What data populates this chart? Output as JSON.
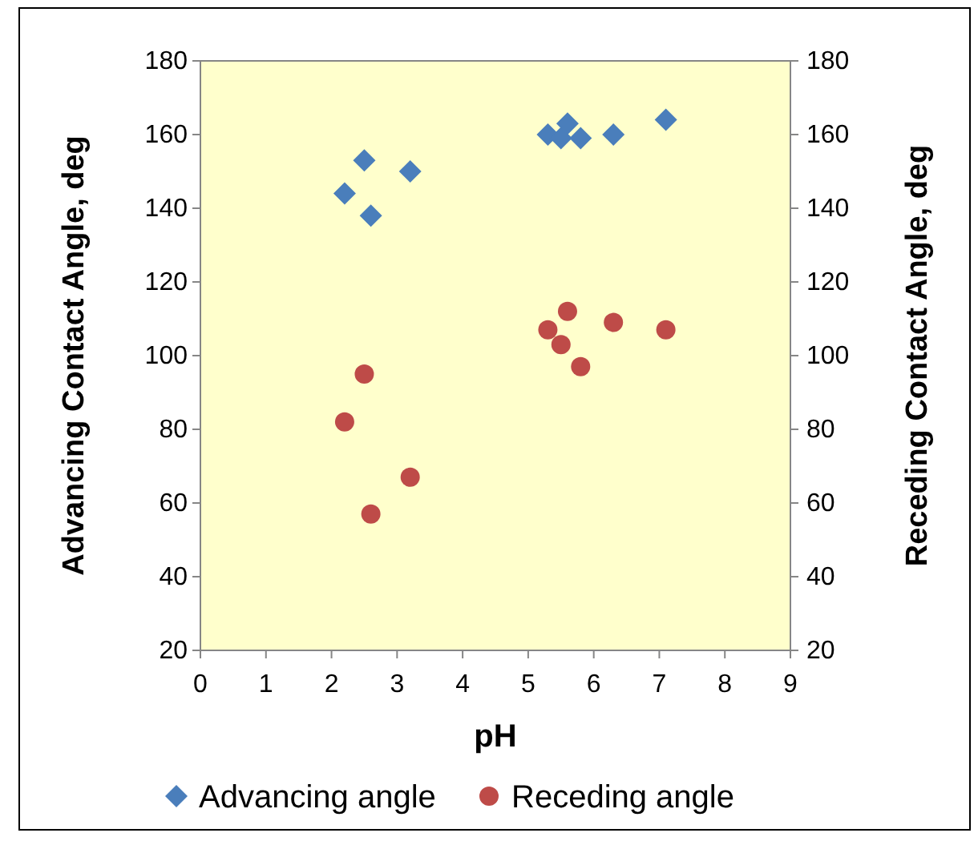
{
  "chart_data": {
    "type": "scatter",
    "xlabel": "pH",
    "ylabel": "Advancing Contact Angle, deg",
    "y2label": "Receding Contact Angle, deg",
    "xlim": [
      0,
      9
    ],
    "xticks": [
      0,
      1,
      2,
      3,
      4,
      5,
      6,
      7,
      8,
      9
    ],
    "ylim": [
      20,
      180
    ],
    "yticks": [
      20,
      40,
      60,
      80,
      100,
      120,
      140,
      160,
      180
    ],
    "y2lim": [
      20,
      180
    ],
    "y2ticks": [
      20,
      40,
      60,
      80,
      100,
      120,
      140,
      160,
      180
    ],
    "legend": "bottom",
    "grid": false,
    "series": [
      {
        "name": "Advancing angle",
        "color": "#4a7ebb",
        "marker": "diamond",
        "x": [
          2.2,
          2.5,
          2.6,
          3.2,
          5.3,
          5.5,
          5.6,
          5.8,
          6.3,
          7.1
        ],
        "values": [
          144,
          153,
          138,
          150,
          160,
          159,
          163,
          159,
          160,
          164
        ]
      },
      {
        "name": "Receding angle",
        "color": "#be4b48",
        "marker": "circle",
        "x": [
          2.2,
          2.5,
          2.6,
          3.2,
          5.3,
          5.5,
          5.6,
          5.8,
          6.3,
          7.1
        ],
        "values": [
          82,
          95,
          57,
          67,
          107,
          103,
          112,
          97,
          109,
          107
        ]
      }
    ]
  }
}
